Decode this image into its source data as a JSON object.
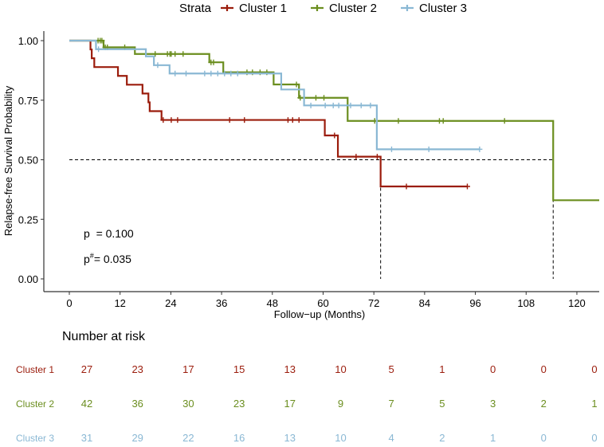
{
  "chart_data": {
    "type": "line",
    "subtype": "kaplan-meier",
    "xlabel": "Follow−up (Months)",
    "ylabel": "Relapse-free Survival Probability",
    "xlim": [
      -5,
      125.5
    ],
    "ylim": [
      -0.05,
      1.05
    ],
    "xticks": [
      0,
      12,
      24,
      36,
      48,
      60,
      72,
      84,
      96,
      108,
      120
    ],
    "yticks": [
      0,
      0.25,
      0.5,
      0.75,
      1.0
    ],
    "ytick_labels": [
      "0.00",
      "0.25",
      "0.50",
      "0.75",
      "1.00"
    ],
    "grid": false,
    "legend": {
      "title": "Strata",
      "position": "top"
    },
    "annotations": {
      "p": "p  = 0.100",
      "p_hash_prefix": "p",
      "p_hash_sup": "#",
      "p_hash_value": "= 0.035"
    },
    "median_line": {
      "y": 0.5,
      "x_medians": [
        73.6,
        114.4
      ]
    },
    "series": [
      {
        "name": "Cluster 1",
        "color": "#9b1c0c",
        "steps": [
          [
            5.0,
            0.963
          ],
          [
            5.3,
            0.926
          ],
          [
            5.9,
            0.889
          ],
          [
            11.5,
            0.852
          ],
          [
            13.6,
            0.815
          ],
          [
            17.3,
            0.778
          ],
          [
            18.7,
            0.741
          ],
          [
            19.0,
            0.704
          ],
          [
            21.8,
            0.667
          ],
          [
            60.4,
            0.602
          ],
          [
            63.5,
            0.513
          ],
          [
            73.6,
            0.388
          ]
        ],
        "end": 94.1,
        "censored": [
          22.2,
          24.1,
          25.6,
          37.9,
          41.4,
          51.7,
          52.8,
          54.3,
          62.7,
          67.8,
          72.8,
          79.7,
          94.1
        ]
      },
      {
        "name": "Cluster 2",
        "color": "#6b8e1f",
        "steps": [
          [
            8.1,
            0.972
          ],
          [
            15.5,
            0.944
          ],
          [
            33.1,
            0.909
          ],
          [
            36.4,
            0.867
          ],
          [
            48.3,
            0.816
          ],
          [
            54.3,
            0.76
          ],
          [
            65.8,
            0.663
          ],
          [
            114.4,
            0.33
          ]
        ],
        "end": 125.5,
        "censored": [
          6.8,
          7.3,
          7.7,
          8.5,
          9.0,
          13.1,
          20.3,
          23.2,
          23.8,
          24.1,
          25.0,
          26.9,
          33.5,
          34.1,
          42.0,
          43.3,
          45.1,
          46.7,
          53.7,
          54.6,
          58.3,
          60.2,
          72.2,
          77.8,
          87.5,
          88.4,
          102.9
        ]
      },
      {
        "name": "Cluster 3",
        "color": "#8ab8d4",
        "steps": [
          [
            6.3,
            0.964
          ],
          [
            18.1,
            0.934
          ],
          [
            20.0,
            0.897
          ],
          [
            23.7,
            0.862
          ],
          [
            50.1,
            0.795
          ],
          [
            55.5,
            0.728
          ],
          [
            72.7,
            0.544
          ]
        ],
        "end": 97.0,
        "censored": [
          6.9,
          20.9,
          25.0,
          27.6,
          32.0,
          33.5,
          35.1,
          36.7,
          38.2,
          39.8,
          57.1,
          60.5,
          62.4,
          63.7,
          66.5,
          69.0,
          71.2,
          76.2,
          85.0,
          97.0
        ]
      }
    ],
    "risk_table": {
      "title": "Number at risk",
      "times": [
        0,
        12,
        24,
        36,
        48,
        60,
        72,
        84,
        96,
        108,
        120
      ],
      "rows": [
        {
          "label": "Cluster 1",
          "values": [
            27,
            23,
            17,
            15,
            13,
            10,
            5,
            1,
            0,
            0,
            0
          ]
        },
        {
          "label": "Cluster 2",
          "values": [
            42,
            36,
            30,
            23,
            17,
            9,
            7,
            5,
            3,
            2,
            1
          ]
        },
        {
          "label": "Cluster 3",
          "values": [
            31,
            29,
            22,
            16,
            13,
            10,
            4,
            2,
            1,
            0,
            0
          ]
        }
      ]
    }
  }
}
